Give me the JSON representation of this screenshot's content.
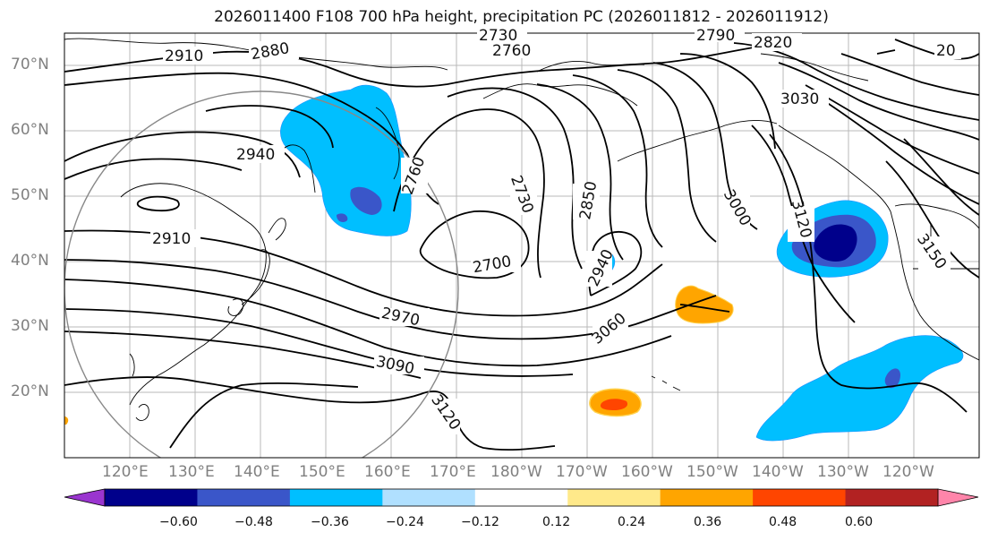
{
  "title": "2026011400 F108 700 hPa height, precipitation PC (2026011812 - 2026011912)",
  "lat_labels": [
    "70°N",
    "60°N",
    "50°N",
    "40°N",
    "30°N",
    "20°N"
  ],
  "lon_labels": [
    "120°E",
    "130°E",
    "140°E",
    "150°E",
    "160°E",
    "170°E",
    "180°W",
    "170°W",
    "160°W",
    "150°W",
    "140°W",
    "130°W",
    "120°W"
  ],
  "contour_labels": [
    "2730",
    "2760",
    "2790",
    "2820",
    "2910",
    "2880",
    "2940",
    "2910",
    "2970",
    "2760",
    "2730",
    "2700",
    "2850",
    "2940",
    "3060",
    "3090",
    "3120",
    "3000",
    "3030",
    "3120",
    "3150",
    "20"
  ],
  "colorbar": {
    "ticks": [
      "−0.60",
      "−0.48",
      "−0.36",
      "−0.24",
      "−0.12",
      "0.12",
      "0.24",
      "0.36",
      "0.48",
      "0.60"
    ],
    "colors": [
      "#9a35cf",
      "#00008b",
      "#3a56c9",
      "#00bfff",
      "#b0e0ff",
      "#ffffff",
      "#ffe98a",
      "#ffa500",
      "#ff4500",
      "#b22222",
      "#ff85aa"
    ]
  }
}
